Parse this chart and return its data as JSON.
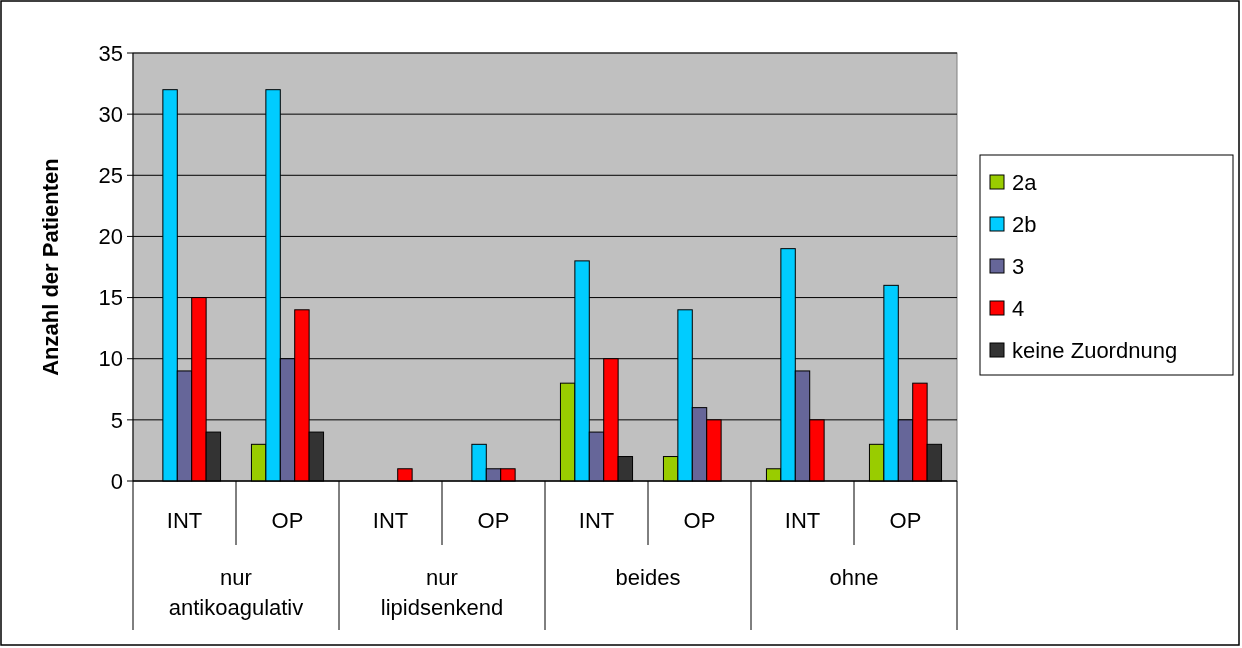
{
  "chart_data": {
    "type": "bar",
    "ylabel": "Anzahl der Patienten",
    "categories": [
      "INT",
      "OP",
      "INT",
      "OP",
      "INT",
      "OP",
      "INT",
      "OP"
    ],
    "annotations": [
      "nur antikoagulativ",
      "nur lipidsenkend",
      "beides",
      "ohne"
    ],
    "series": [
      {
        "name": "2a",
        "color": "#99cc00",
        "values": [
          0,
          3,
          0,
          0,
          8,
          2,
          1,
          3
        ]
      },
      {
        "name": "2b",
        "color": "#00ccff",
        "values": [
          32,
          32,
          0,
          3,
          18,
          14,
          19,
          16
        ]
      },
      {
        "name": "3",
        "color": "#666699",
        "values": [
          9,
          10,
          0,
          1,
          4,
          6,
          9,
          5
        ]
      },
      {
        "name": "4",
        "color": "#ff0000",
        "values": [
          15,
          14,
          1,
          1,
          10,
          5,
          5,
          8
        ]
      },
      {
        "name": "keine Zuordnung",
        "color": "#333333",
        "values": [
          4,
          4,
          0,
          0,
          2,
          0,
          0,
          3
        ]
      }
    ],
    "ylim": [
      0,
      35
    ],
    "yticks": [
      0,
      5,
      10,
      15,
      20,
      25,
      30,
      35
    ],
    "grid": "y",
    "legend": "right"
  }
}
